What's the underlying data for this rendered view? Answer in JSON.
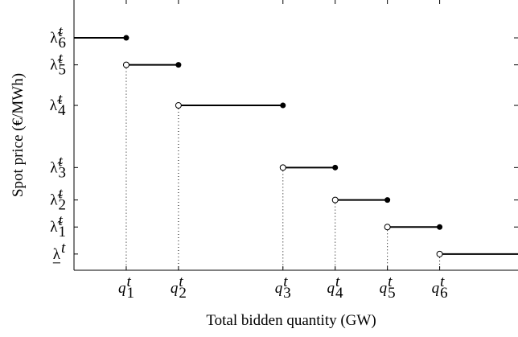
{
  "chart_data": {
    "type": "step",
    "xlabel": "Total bidden quantity (GW)",
    "ylabel": "Spot price (€/MWh)",
    "xlim": [
      0,
      8.5
    ],
    "ylim": [
      0,
      10
    ],
    "xticks": [
      {
        "value": 1,
        "label": {
          "base": "q",
          "sup": "t",
          "sub": "1"
        }
      },
      {
        "value": 2,
        "label": {
          "base": "q",
          "sup": "t",
          "sub": "2"
        }
      },
      {
        "value": 4,
        "label": {
          "base": "q",
          "sup": "t",
          "sub": "3"
        }
      },
      {
        "value": 5,
        "label": {
          "base": "q",
          "sup": "t",
          "sub": "4"
        }
      },
      {
        "value": 6,
        "label": {
          "base": "q",
          "sup": "t",
          "sub": "5"
        }
      },
      {
        "value": 7,
        "label": {
          "base": "q",
          "sup": "t",
          "sub": "6"
        }
      }
    ],
    "yticks": [
      {
        "value": 0.6,
        "label": {
          "base": "λ",
          "sup": "t",
          "underline": true
        }
      },
      {
        "value": 1.6,
        "label": {
          "base": "λ̃",
          "sup": "t",
          "sub": "1"
        }
      },
      {
        "value": 2.6,
        "label": {
          "base": "λ̃",
          "sup": "t",
          "sub": "2"
        }
      },
      {
        "value": 3.8,
        "label": {
          "base": "λ̃",
          "sup": "t",
          "sub": "3"
        }
      },
      {
        "value": 6.1,
        "label": {
          "base": "λ̃",
          "sup": "t",
          "sub": "4"
        }
      },
      {
        "value": 7.6,
        "label": {
          "base": "λ̃",
          "sup": "t",
          "sub": "5"
        }
      },
      {
        "value": 8.6,
        "label": {
          "base": "λ̃",
          "sup": "t",
          "sub": "6"
        }
      }
    ],
    "series": [
      {
        "x": [
          0,
          1,
          2,
          4,
          5,
          6,
          7
        ],
        "values": [
          8.6,
          7.6,
          6.1,
          3.8,
          2.6,
          1.6,
          0.6
        ],
        "color": "#000000"
      }
    ]
  }
}
